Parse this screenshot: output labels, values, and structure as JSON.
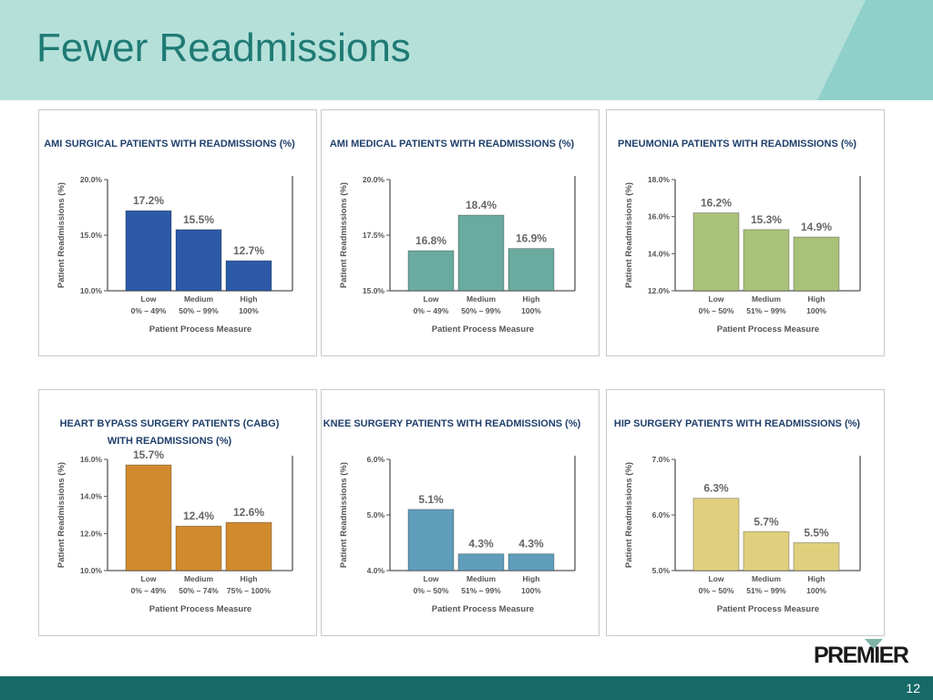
{
  "slide": {
    "title": "Fewer Readmissions",
    "page_number": "12",
    "logo_text": "PREMIER"
  },
  "colors": {
    "header_bg": "#b5e0da",
    "header_accent": "#8fd0c8",
    "title": "#1f7a74",
    "footer": "#156a67"
  },
  "chart_data": [
    {
      "type": "bar",
      "title_lines": [
        "AMI SURGICAL PATIENTS WITH READMISSIONS (%)"
      ],
      "ylabel": "Patient Readmissions (%)",
      "xlabel": "Patient Process Measure",
      "categories": [
        [
          "Low",
          "0% – 49%"
        ],
        [
          "Medium",
          "50% – 99%"
        ],
        [
          "High",
          "100%"
        ]
      ],
      "values": [
        17.2,
        15.5,
        12.7
      ],
      "value_labels": [
        "17.2%",
        "15.5%",
        "12.7%"
      ],
      "yticks": [
        10.0,
        15.0,
        20.0
      ],
      "ytick_labels": [
        "10.0%",
        "15.0%",
        "20.0%"
      ],
      "ylim": [
        10.0,
        20.0
      ],
      "color": "#2c5aa8"
    },
    {
      "type": "bar",
      "title_lines": [
        "AMI MEDICAL PATIENTS WITH READMISSIONS (%)"
      ],
      "ylabel": "Patient Readmissions (%)",
      "xlabel": "Patient Process Measure",
      "categories": [
        [
          "Low",
          "0% – 49%"
        ],
        [
          "Medium",
          "50% – 99%"
        ],
        [
          "High",
          "100%"
        ]
      ],
      "values": [
        16.8,
        18.4,
        16.9
      ],
      "value_labels": [
        "16.8%",
        "18.4%",
        "16.9%"
      ],
      "yticks": [
        15.0,
        17.5,
        20.0
      ],
      "ytick_labels": [
        "15.0%",
        "17.5%",
        "20.0%"
      ],
      "ylim": [
        15.0,
        20.0
      ],
      "color": "#6aaa9f"
    },
    {
      "type": "bar",
      "title_lines": [
        "PNEUMONIA PATIENTS WITH READMISSIONS (%)"
      ],
      "ylabel": "Patient Readmissions (%)",
      "xlabel": "Patient Process Measure",
      "categories": [
        [
          "Low",
          "0% – 50%"
        ],
        [
          "Medium",
          "51% – 99%"
        ],
        [
          "High",
          "100%"
        ]
      ],
      "values": [
        16.2,
        15.3,
        14.9
      ],
      "value_labels": [
        "16.2%",
        "15.3%",
        "14.9%"
      ],
      "yticks": [
        12.0,
        14.0,
        16.0,
        18.0
      ],
      "ytick_labels": [
        "12.0%",
        "14.0%",
        "16.0%",
        "18.0%"
      ],
      "ylim": [
        12.0,
        18.0
      ],
      "color": "#a9c27a"
    },
    {
      "type": "bar",
      "title_lines": [
        "HEART BYPASS SURGERY PATIENTS (CABG)",
        "WITH READMISSIONS (%)"
      ],
      "ylabel": "Patient Readmissions (%)",
      "xlabel": "Patient Process Measure",
      "categories": [
        [
          "Low",
          "0% – 49%"
        ],
        [
          "Medium",
          "50% – 74%"
        ],
        [
          "High",
          "75% – 100%"
        ]
      ],
      "values": [
        15.7,
        12.4,
        12.6
      ],
      "value_labels": [
        "15.7%",
        "12.4%",
        "12.6%"
      ],
      "yticks": [
        10.0,
        12.0,
        14.0,
        16.0
      ],
      "ytick_labels": [
        "10.0%",
        "12.0%",
        "14.0%",
        "16.0%"
      ],
      "ylim": [
        10.0,
        16.0
      ],
      "color": "#d18a2e"
    },
    {
      "type": "bar",
      "title_lines": [
        "KNEE SURGERY PATIENTS WITH READMISSIONS (%)"
      ],
      "ylabel": "Patient Readmissions (%)",
      "xlabel": "Patient Process Measure",
      "categories": [
        [
          "Low",
          "0% – 50%"
        ],
        [
          "Medium",
          "51% – 99%"
        ],
        [
          "High",
          "100%"
        ]
      ],
      "values": [
        5.1,
        4.3,
        4.3
      ],
      "value_labels": [
        "5.1%",
        "4.3%",
        "4.3%"
      ],
      "yticks": [
        4.0,
        5.0,
        6.0
      ],
      "ytick_labels": [
        "4.0%",
        "5.0%",
        "6.0%"
      ],
      "ylim": [
        4.0,
        6.0
      ],
      "color": "#5f9dbb"
    },
    {
      "type": "bar",
      "title_lines": [
        "HIP SURGERY PATIENTS WITH READMISSIONS (%)"
      ],
      "ylabel": "Patient Readmissions (%)",
      "xlabel": "Patient Process Measure",
      "categories": [
        [
          "Low",
          "0% – 50%"
        ],
        [
          "Medium",
          "51% – 99%"
        ],
        [
          "High",
          "100%"
        ]
      ],
      "values": [
        6.3,
        5.7,
        5.5
      ],
      "value_labels": [
        "6.3%",
        "5.7%",
        "5.5%"
      ],
      "yticks": [
        5.0,
        6.0,
        7.0
      ],
      "ytick_labels": [
        "5.0%",
        "6.0%",
        "7.0%"
      ],
      "ylim": [
        5.0,
        7.0
      ],
      "color": "#e0d07e"
    }
  ]
}
